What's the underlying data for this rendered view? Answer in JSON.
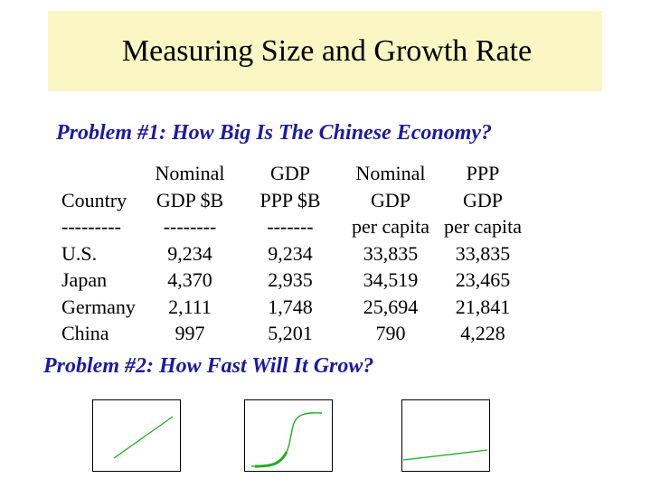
{
  "title": "Measuring Size and Growth Rate",
  "problem1": "Problem #1: How Big Is The Chinese Economy?",
  "problem2": "Problem #2: How Fast Will It Grow?",
  "table": {
    "headers": {
      "country": [
        "",
        "Country",
        "---------"
      ],
      "nominal_gdp": [
        "Nominal",
        "GDP $B",
        "--------"
      ],
      "gdp_ppp": [
        "GDP",
        "PPP $B",
        "-------"
      ],
      "nominal_pc": [
        "Nominal",
        "GDP",
        "per capita"
      ],
      "ppp_pc": [
        "PPP",
        "GDP",
        "per capita"
      ]
    },
    "rows": [
      {
        "country": "U.S.",
        "nominal_gdp": "9,234",
        "gdp_ppp": "9,234",
        "nominal_pc": "33,835",
        "ppp_pc": "33,835"
      },
      {
        "country": "Japan",
        "nominal_gdp": "4,370",
        "gdp_ppp": "2,935",
        "nominal_pc": "34,519",
        "ppp_pc": "23,465"
      },
      {
        "country": "Germany",
        "nominal_gdp": "2,111",
        "gdp_ppp": "1,748",
        "nominal_pc": "25,694",
        "ppp_pc": "21,841"
      },
      {
        "country": "China",
        "nominal_gdp": "997",
        "gdp_ppp": "5,201",
        "nominal_pc": "790",
        "ppp_pc": "4,228"
      }
    ]
  },
  "colors": {
    "title_bg": "#fbf7c4",
    "problem_text": "#1a1aa6",
    "curve": "#1fae1f"
  },
  "graphs": [
    "linear-growth",
    "s-curve-growth",
    "slow-linear-growth"
  ]
}
